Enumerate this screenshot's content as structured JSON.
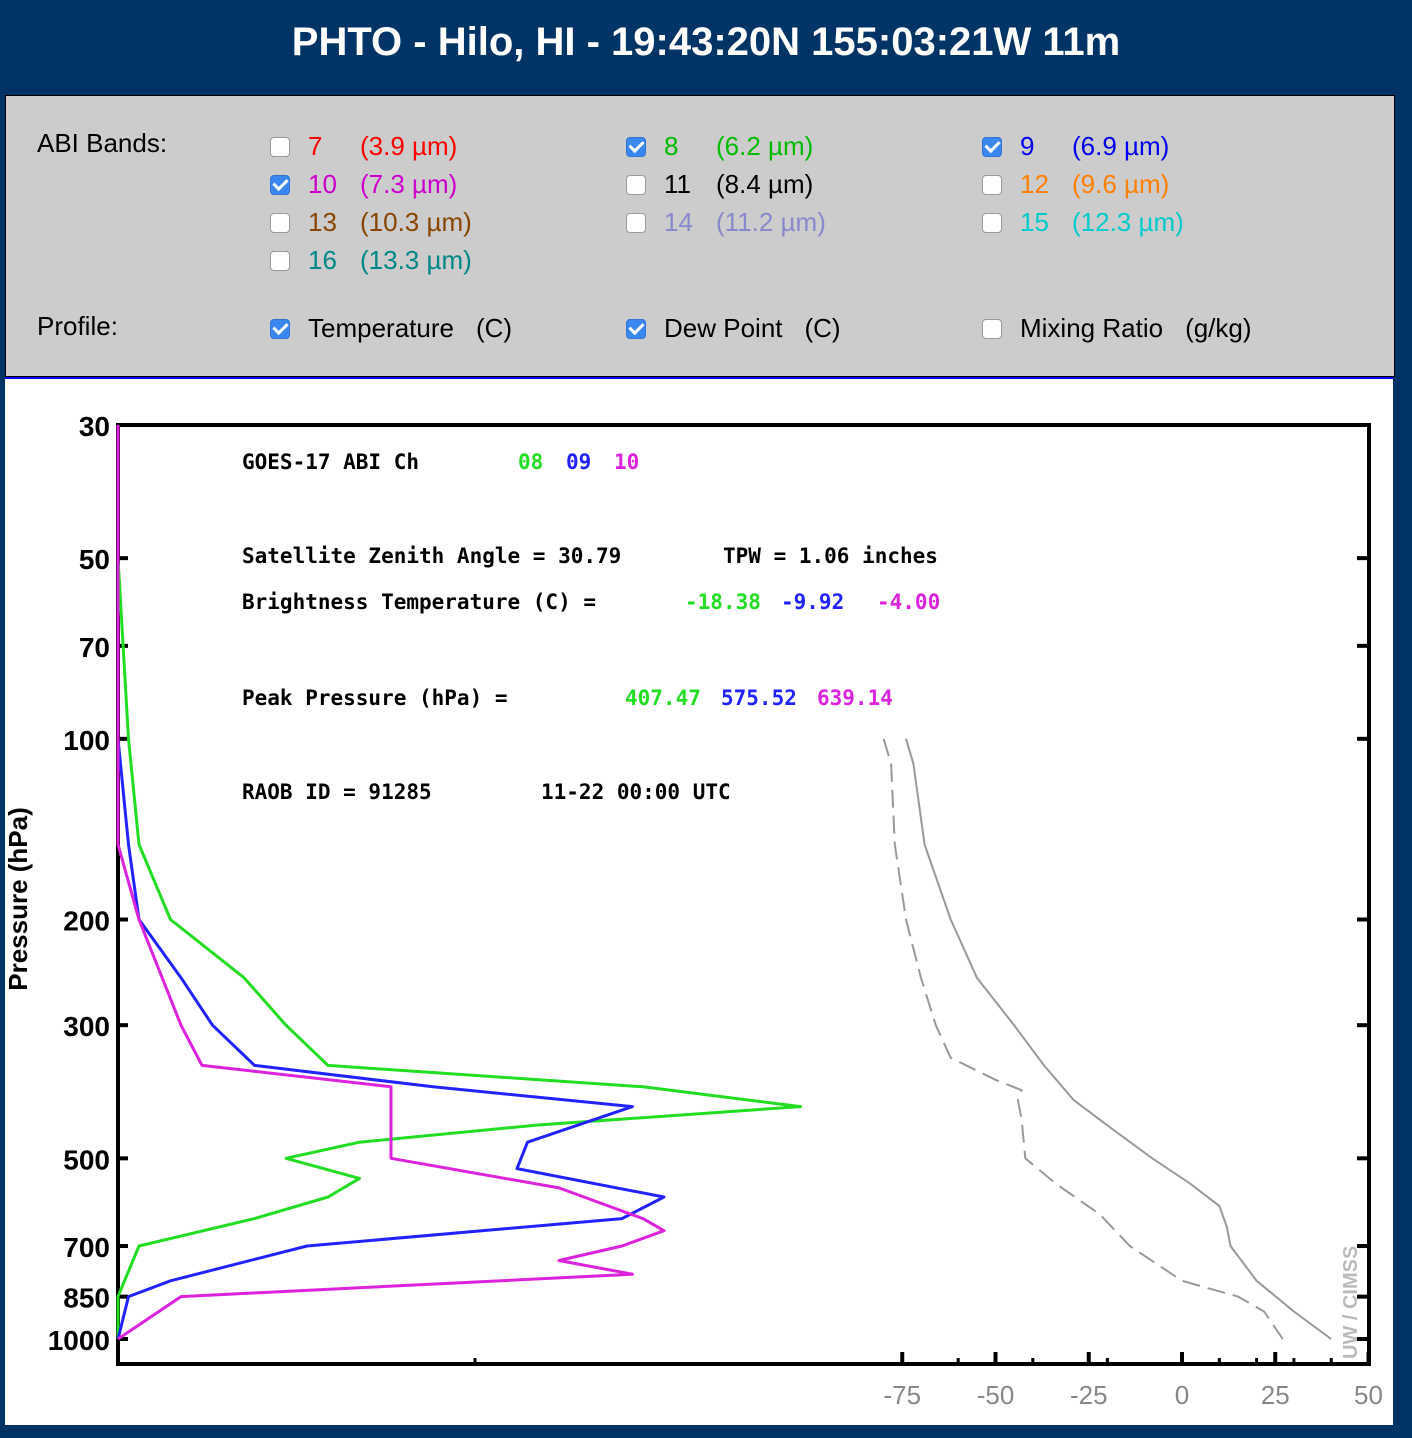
{
  "header": {
    "title": "PHTO - Hilo, HI - 19:43:20N 155:03:21W 11m"
  },
  "controls": {
    "abi_label": "ABI Bands:",
    "bands": [
      {
        "num": "7",
        "wl": "(3.9 µm)",
        "color": "#ff0000",
        "checked": false
      },
      {
        "num": "8",
        "wl": "(6.2 µm)",
        "color": "#00bb00",
        "checked": true
      },
      {
        "num": "9",
        "wl": "(6.9 µm)",
        "color": "#0000ee",
        "checked": true
      },
      {
        "num": "10",
        "wl": "(7.3 µm)",
        "color": "#cc00cc",
        "checked": true
      },
      {
        "num": "11",
        "wl": "(8.4 µm)",
        "color": "#000000",
        "checked": false
      },
      {
        "num": "12",
        "wl": "(9.6 µm)",
        "color": "#ff8000",
        "checked": false
      },
      {
        "num": "13",
        "wl": "(10.3 µm)",
        "color": "#884400",
        "checked": false
      },
      {
        "num": "14",
        "wl": "(11.2 µm)",
        "color": "#8888cc",
        "checked": false
      },
      {
        "num": "15",
        "wl": "(12.3 µm)",
        "color": "#00cccc",
        "checked": false
      },
      {
        "num": "16",
        "wl": "(13.3 µm)",
        "color": "#008888",
        "checked": false
      }
    ],
    "profile_label": "Profile:",
    "profiles": [
      {
        "name": "Temperature",
        "unit": "(C)",
        "checked": true
      },
      {
        "name": "Dew Point",
        "unit": "(C)",
        "checked": true
      },
      {
        "name": "Mixing Ratio",
        "unit": "(g/kg)",
        "checked": false
      }
    ]
  },
  "plot": {
    "ylabel": "Pressure (hPa)",
    "pressure_ticks": [
      30,
      50,
      70,
      100,
      200,
      300,
      500,
      700,
      850,
      1000
    ],
    "temp_ticks": [
      -75,
      -50,
      -25,
      0,
      25,
      50
    ],
    "header_line": "GOES-17 ABI  Ch",
    "channels": [
      "08",
      "09",
      "10"
    ],
    "channel_colors": [
      "#22dd22",
      "#2222ff",
      "#dd22dd"
    ],
    "zenith_text": "Satellite Zenith Angle = 30.79",
    "tpw_text": "TPW = 1.06 inches",
    "bt_label": "Brightness Temperature (C) =",
    "bt_values": [
      "-18.38",
      "-9.92",
      "-4.00"
    ],
    "peak_label": "Peak Pressure (hPa) =",
    "peak_values": [
      "407.47",
      "575.52",
      "639.14"
    ],
    "raob_text": "RAOB ID = 91285",
    "raob_time": "11-22 00:00 UTC",
    "credit": "UW / CIMSS"
  },
  "chart_data": {
    "type": "line",
    "xlabel": "",
    "ylabel": "Pressure (hPa)",
    "y_scale": "log",
    "y_inverted": true,
    "ylim": [
      30,
      1000
    ],
    "x_ticks": [
      -75,
      -50,
      -25,
      0,
      25,
      50
    ],
    "series": [
      {
        "name": "08",
        "color": "#22dd22",
        "kind": "weighting",
        "points": [
          [
            30,
            0.0
          ],
          [
            50,
            0.0
          ],
          [
            100,
            0.1
          ],
          [
            150,
            0.2
          ],
          [
            200,
            0.5
          ],
          [
            250,
            1.2
          ],
          [
            300,
            1.6
          ],
          [
            350,
            2.0
          ],
          [
            380,
            5.0
          ],
          [
            410,
            6.5
          ],
          [
            440,
            4.0
          ],
          [
            470,
            2.3
          ],
          [
            500,
            1.6
          ],
          [
            540,
            2.3
          ],
          [
            580,
            2.0
          ],
          [
            630,
            1.3
          ],
          [
            700,
            0.2
          ],
          [
            850,
            0.0
          ],
          [
            1000,
            0.0
          ]
        ]
      },
      {
        "name": "09",
        "color": "#2222ff",
        "kind": "weighting",
        "points": [
          [
            30,
            0.0
          ],
          [
            50,
            0.0
          ],
          [
            100,
            0.0
          ],
          [
            150,
            0.1
          ],
          [
            200,
            0.2
          ],
          [
            250,
            0.6
          ],
          [
            300,
            0.9
          ],
          [
            350,
            1.3
          ],
          [
            380,
            3.0
          ],
          [
            410,
            4.9
          ],
          [
            470,
            3.9
          ],
          [
            520,
            3.8
          ],
          [
            580,
            5.2
          ],
          [
            630,
            4.8
          ],
          [
            700,
            1.8
          ],
          [
            800,
            0.5
          ],
          [
            850,
            0.1
          ],
          [
            1000,
            0.0
          ]
        ]
      },
      {
        "name": "10",
        "color": "#dd22dd",
        "kind": "weighting",
        "points": [
          [
            30,
            0.0
          ],
          [
            50,
            0.0
          ],
          [
            100,
            0.0
          ],
          [
            150,
            0.0
          ],
          [
            200,
            0.2
          ],
          [
            300,
            0.6
          ],
          [
            350,
            0.8
          ],
          [
            380,
            2.6
          ],
          [
            420,
            2.6
          ],
          [
            500,
            2.6
          ],
          [
            560,
            4.2
          ],
          [
            630,
            5.0
          ],
          [
            660,
            5.2
          ],
          [
            700,
            4.8
          ],
          [
            740,
            4.2
          ],
          [
            780,
            4.9
          ],
          [
            850,
            0.6
          ],
          [
            1000,
            0.0
          ]
        ]
      },
      {
        "name": "",
        "color": "#999999",
        "kind": "temperature",
        "dash": false,
        "points": [
          [
            -74,
            100
          ],
          [
            -72,
            110
          ],
          [
            -69,
            150
          ],
          [
            -62,
            200
          ],
          [
            -55,
            250
          ],
          [
            -45,
            300
          ],
          [
            -37,
            350
          ],
          [
            -29,
            400
          ],
          [
            -18,
            450
          ],
          [
            -8,
            500
          ],
          [
            2,
            550
          ],
          [
            10,
            600
          ],
          [
            12,
            650
          ],
          [
            13,
            700
          ],
          [
            20,
            800
          ],
          [
            30,
            900
          ],
          [
            40,
            1000
          ]
        ]
      },
      {
        "name": "",
        "color": "#999999",
        "kind": "dewpoint",
        "dash": true,
        "points": [
          [
            -80,
            100
          ],
          [
            -78,
            110
          ],
          [
            -77,
            150
          ],
          [
            -74,
            200
          ],
          [
            -70,
            250
          ],
          [
            -66,
            300
          ],
          [
            -62,
            340
          ],
          [
            -50,
            370
          ],
          [
            -43,
            385
          ],
          [
            -44,
            400
          ],
          [
            -43,
            430
          ],
          [
            -42,
            500
          ],
          [
            -34,
            550
          ],
          [
            -22,
            620
          ],
          [
            -14,
            700
          ],
          [
            0,
            800
          ],
          [
            15,
            850
          ],
          [
            22,
            900
          ],
          [
            27,
            1000
          ]
        ]
      }
    ]
  }
}
